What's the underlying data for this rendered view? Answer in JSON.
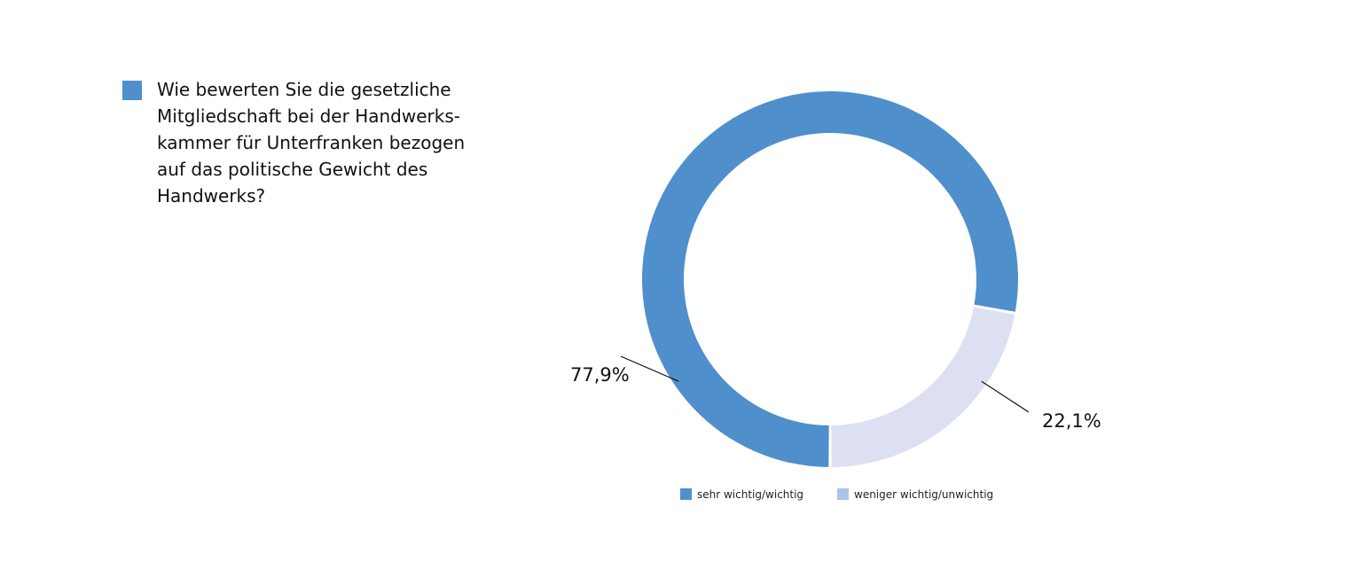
{
  "question": {
    "text": "Wie bewerten Sie die gesetzliche\nMitgliedschaft bei der Handwerks-\nkammer für Unterfranken bezogen\nauf das politische Gewicht des\nHandwerks?",
    "marker_color": "#4f8fcc"
  },
  "chart_data": {
    "type": "pie",
    "variant": "donut",
    "title": "",
    "categories": [
      "sehr wichtig/wichtig",
      "weniger wichtig/unwichtig"
    ],
    "values": [
      77.9,
      22.1
    ],
    "value_labels": [
      "77,9%",
      "22,1%"
    ],
    "colors": [
      "#4f8fcc",
      "#dde0f2"
    ],
    "legend_colors": [
      "#4f8fcc",
      "#a9c6e6"
    ],
    "legend_placement": "bottom",
    "start": "6 o'clock",
    "direction": "clockwise"
  }
}
